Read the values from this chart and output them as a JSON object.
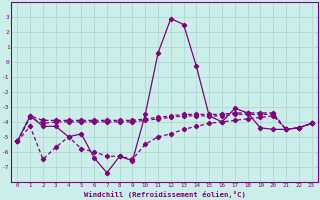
{
  "xlabel": "Windchill (Refroidissement éolien,°C)",
  "bg_color": "#cceee8",
  "grid_color": "#aad4ce",
  "line_color": "#800080",
  "x_hours": [
    0,
    1,
    2,
    3,
    4,
    5,
    6,
    7,
    8,
    9,
    10,
    11,
    12,
    13,
    14,
    15,
    16,
    17,
    18,
    19,
    20,
    21,
    22,
    23
  ],
  "line_temp": [
    -5.3,
    -3.6,
    -4.3,
    -4.3,
    -5.0,
    -4.8,
    -6.4,
    -7.4,
    -6.3,
    -6.6,
    -3.5,
    0.6,
    2.9,
    2.5,
    -0.3,
    -3.6,
    -4.0,
    -3.1,
    -3.4,
    -4.4,
    -4.5,
    -4.5,
    -4.4,
    -4.1
  ],
  "line_avg1": [
    -5.3,
    -3.6,
    -3.9,
    -3.9,
    -3.9,
    -3.9,
    -3.9,
    -3.9,
    -3.9,
    -3.9,
    -3.8,
    -3.7,
    -3.6,
    -3.5,
    -3.5,
    -3.5,
    -3.5,
    -3.4,
    -3.4,
    -3.4,
    -3.4,
    -4.5,
    -4.4,
    -4.1
  ],
  "line_avg2": [
    -5.3,
    -3.7,
    -4.1,
    -4.0,
    -4.0,
    -4.0,
    -4.0,
    -4.0,
    -4.0,
    -4.0,
    -3.9,
    -3.8,
    -3.7,
    -3.6,
    -3.6,
    -3.6,
    -3.6,
    -3.5,
    -3.5,
    -3.5,
    -3.5,
    -4.5,
    -4.4,
    -4.1
  ],
  "line_bot": [
    -5.3,
    -4.3,
    -6.5,
    -5.7,
    -5.0,
    -5.8,
    -6.0,
    -6.3,
    -6.3,
    -6.5,
    -5.5,
    -5.0,
    -4.8,
    -4.5,
    -4.3,
    -4.1,
    -4.0,
    -3.9,
    -3.8,
    -3.7,
    -3.6,
    -4.5,
    -4.4,
    -4.1
  ],
  "ylim": [
    -8,
    4
  ],
  "yticks": [
    -7,
    -6,
    -5,
    -4,
    -3,
    -2,
    -1,
    0,
    1,
    2,
    3
  ],
  "xticks": [
    0,
    1,
    2,
    3,
    4,
    5,
    6,
    7,
    8,
    9,
    10,
    11,
    12,
    13,
    14,
    15,
    16,
    17,
    18,
    19,
    20,
    21,
    22,
    23
  ]
}
